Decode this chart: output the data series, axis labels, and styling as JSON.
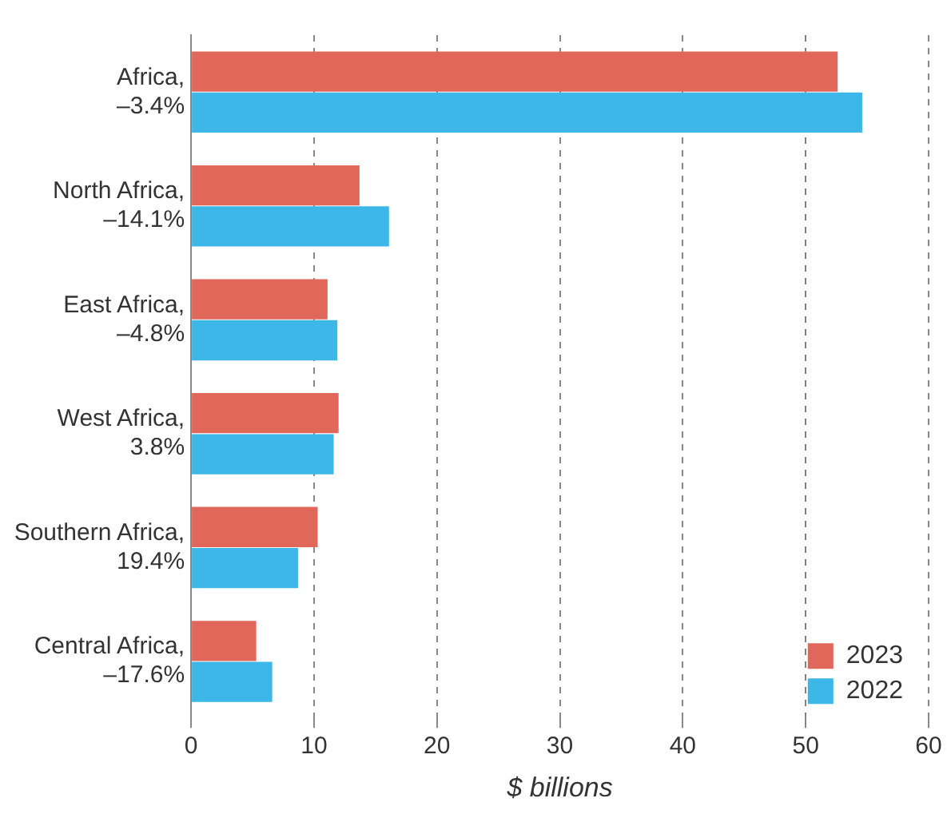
{
  "chart_data": {
    "type": "bar",
    "orientation": "horizontal",
    "xlabel": "$ billions",
    "categories": [
      "Africa,\n–3.4%",
      "North Africa,\n–14.1%",
      "East Africa,\n–4.8%",
      "West Africa,\n3.8%",
      "Southern Africa,\n19.4%",
      "Central Africa,\n–17.6%"
    ],
    "series": [
      {
        "name": "2023",
        "color": "#e0675a",
        "values": [
          52.6,
          13.7,
          11.1,
          12.0,
          10.3,
          5.3
        ]
      },
      {
        "name": "2022",
        "color": "#3db6e8",
        "values": [
          54.6,
          16.1,
          11.9,
          11.6,
          8.7,
          6.6
        ]
      }
    ],
    "xlim": [
      0,
      60
    ],
    "xticks": [
      0,
      10,
      20,
      30,
      40,
      50,
      60
    ],
    "grid": "x",
    "legend": "bottom right"
  }
}
